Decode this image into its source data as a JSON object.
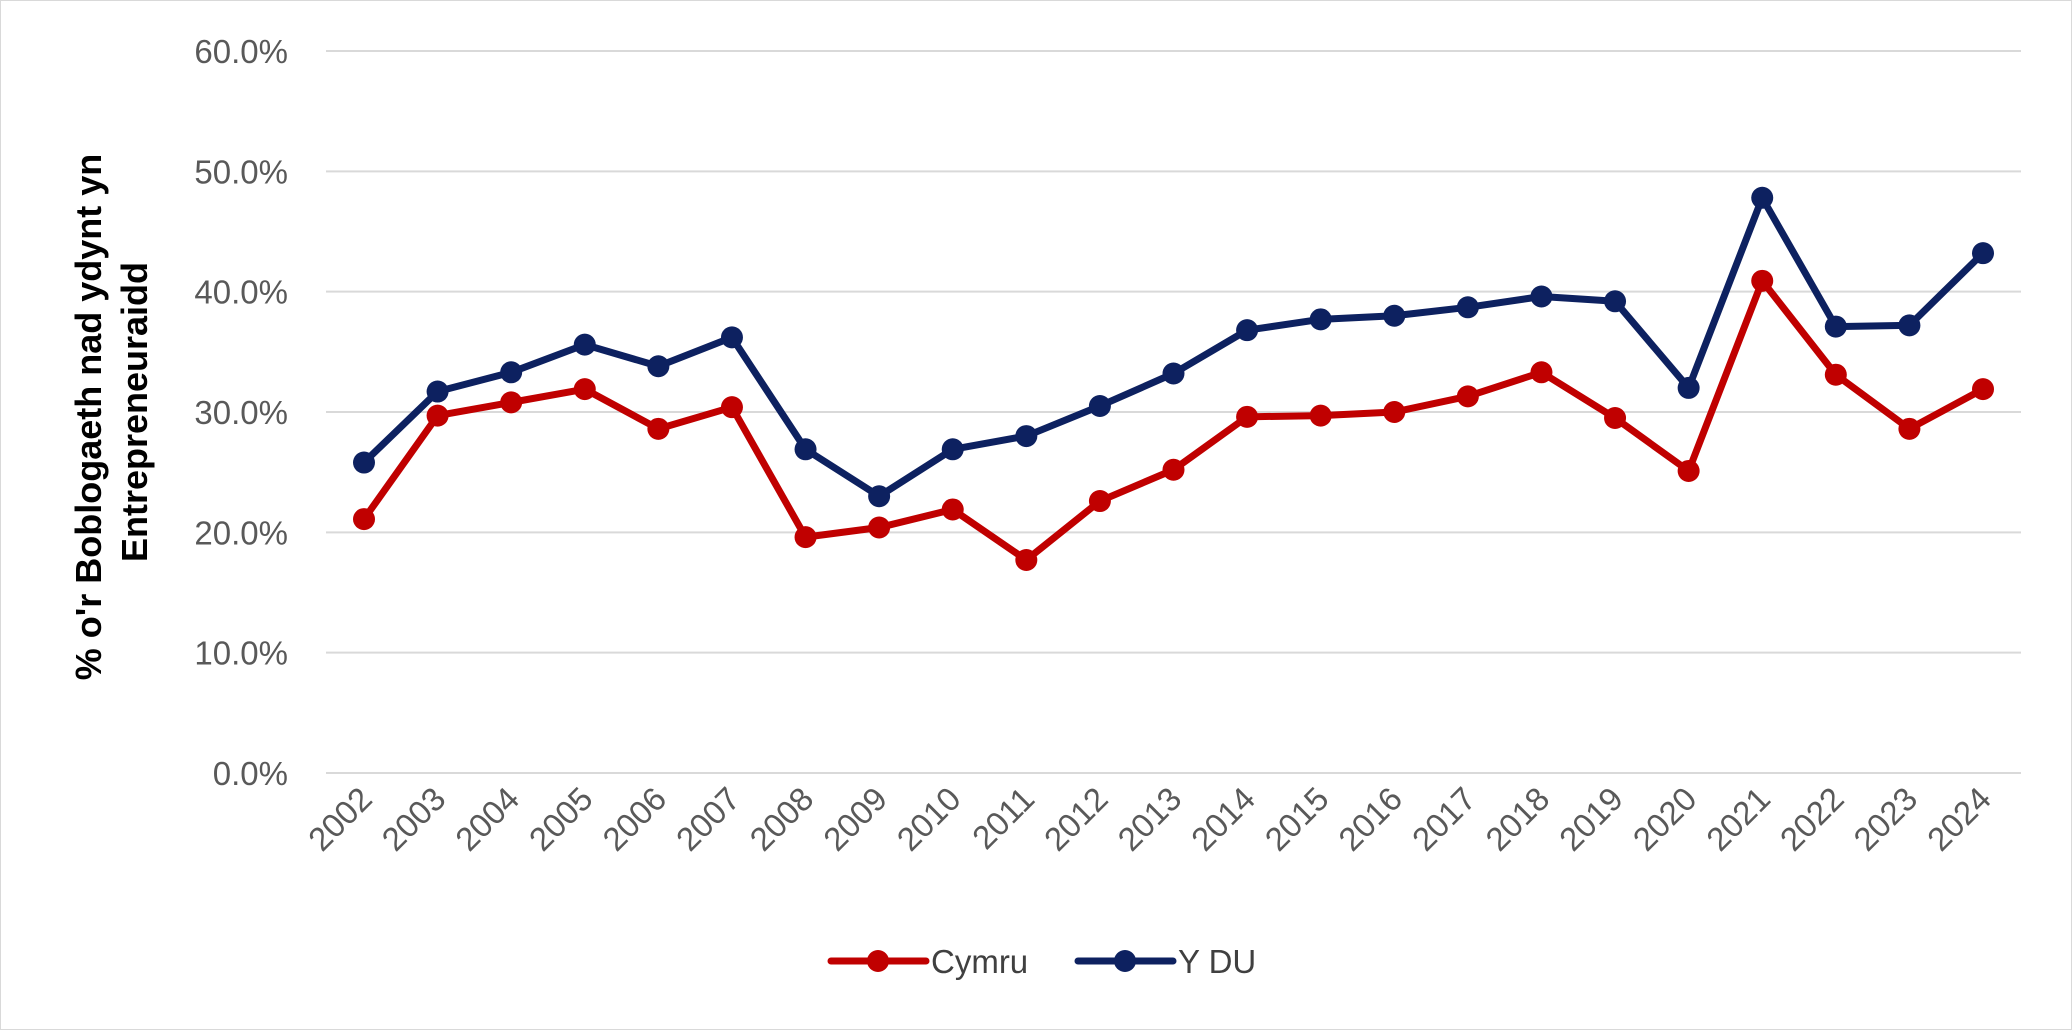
{
  "chart_data": {
    "type": "line",
    "title": "",
    "xlabel": "",
    "ylabel_lines": [
      "% o'r Boblogaeth nad ydynt yn",
      "Entrepreneuraidd"
    ],
    "ylim": [
      0,
      60
    ],
    "yticks": [
      0,
      10,
      20,
      30,
      40,
      50,
      60
    ],
    "ytick_labels": [
      "0.0%",
      "10.0%",
      "20.0%",
      "30.0%",
      "40.0%",
      "50.0%",
      "60.0%"
    ],
    "categories": [
      "2002",
      "2003",
      "2004",
      "2005",
      "2006",
      "2007",
      "2008",
      "2009",
      "2010",
      "2011",
      "2012",
      "2013",
      "2014",
      "2015",
      "2016",
      "2017",
      "2018",
      "2019",
      "2020",
      "2021",
      "2022",
      "2023",
      "2024"
    ],
    "grid": true,
    "legend_position": "bottom",
    "series": [
      {
        "name": "Cymru",
        "color": "#c00000",
        "values": [
          21.1,
          29.7,
          30.8,
          31.9,
          28.6,
          30.4,
          19.6,
          20.4,
          21.9,
          17.7,
          22.6,
          25.2,
          29.6,
          29.7,
          30.0,
          31.3,
          33.3,
          29.5,
          25.1,
          40.9,
          33.1,
          28.6,
          31.9
        ]
      },
      {
        "name": "Y DU",
        "color": "#0d2160",
        "values": [
          25.8,
          31.7,
          33.3,
          35.6,
          33.8,
          36.2,
          26.9,
          23.0,
          26.9,
          28.0,
          30.5,
          33.2,
          36.8,
          37.7,
          38.0,
          38.7,
          39.6,
          39.2,
          32.0,
          47.8,
          37.1,
          37.2,
          43.2
        ]
      }
    ]
  }
}
